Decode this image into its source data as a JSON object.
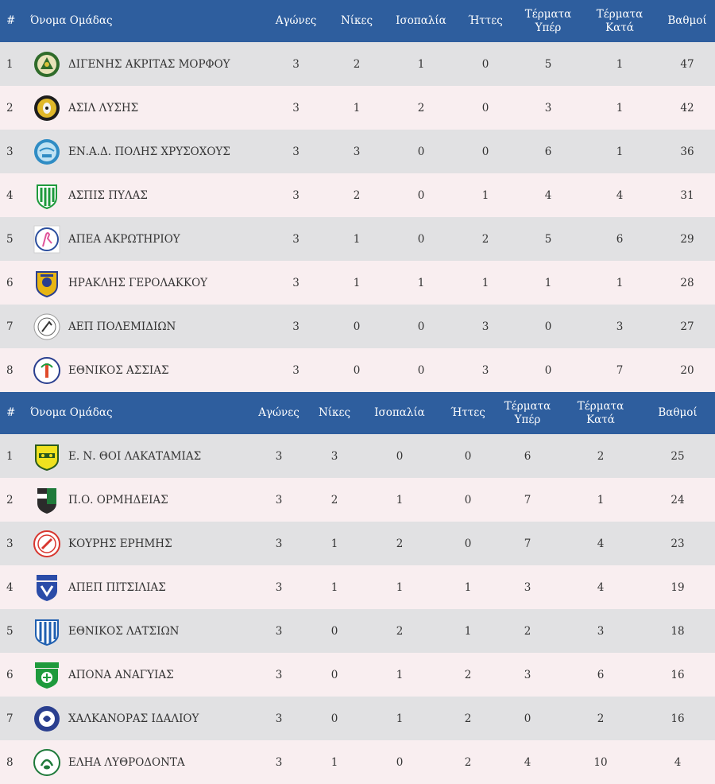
{
  "headers": {
    "pos": "#",
    "team": "Όνομα Ομάδας",
    "played": "Αγώνες",
    "wins": "Νίκες",
    "draws": "Ισοπαλία",
    "losses": "Ήττες",
    "gf_1": "Τέρματα",
    "gf_2": "Υπέρ",
    "ga_1": "Τέρματα",
    "ga_2": "Κατά",
    "points": "Βαθμοί"
  },
  "groups": [
    {
      "rows": [
        {
          "pos": "1",
          "team": "ΔΙΓΕΝΗΣ ΑΚΡΙΤΑΣ ΜΟΡΦΟΥ",
          "played": "3",
          "wins": "2",
          "draws": "1",
          "losses": "0",
          "gf": "5",
          "ga": "1",
          "points": "47",
          "crest": "digenis-akritas-crest-icon"
        },
        {
          "pos": "2",
          "team": "ΑΣΙΛ ΛΥΣΗΣ",
          "played": "3",
          "wins": "1",
          "draws": "2",
          "losses": "0",
          "gf": "3",
          "ga": "1",
          "points": "42",
          "crest": "asil-lysis-crest-icon"
        },
        {
          "pos": "3",
          "team": "ΕΝ.Α.Δ. ΠΟΛΗΣ ΧΡΥΣΟΧΟΥΣ",
          "played": "3",
          "wins": "3",
          "draws": "0",
          "losses": "0",
          "gf": "6",
          "ga": "1",
          "points": "36",
          "crest": "enad-polis-crest-icon"
        },
        {
          "pos": "4",
          "team": "ΑΣΠΙΣ ΠΥΛΑΣ",
          "played": "3",
          "wins": "2",
          "draws": "0",
          "losses": "1",
          "gf": "4",
          "ga": "4",
          "points": "31",
          "crest": "aspis-pylas-crest-icon"
        },
        {
          "pos": "5",
          "team": "ΑΠΕΑ ΑΚΡΩΤΗΡΙΟΥ",
          "played": "3",
          "wins": "1",
          "draws": "0",
          "losses": "2",
          "gf": "5",
          "ga": "6",
          "points": "29",
          "crest": "apea-akrotiriou-crest-icon"
        },
        {
          "pos": "6",
          "team": "ΗΡΑΚΛΗΣ ΓΕΡΟΛΑΚΚΟΥ",
          "played": "3",
          "wins": "1",
          "draws": "1",
          "losses": "1",
          "gf": "1",
          "ga": "1",
          "points": "28",
          "crest": "iraklis-gerolakkou-crest-icon"
        },
        {
          "pos": "7",
          "team": "ΑΕΠ ΠΟΛΕΜΙΔΙΩΝ",
          "played": "3",
          "wins": "0",
          "draws": "0",
          "losses": "3",
          "gf": "0",
          "ga": "3",
          "points": "27",
          "crest": "aep-polemidion-crest-icon"
        },
        {
          "pos": "8",
          "team": "ΕΘΝΙΚΟΣ ΑΣΣΙΑΣ",
          "played": "3",
          "wins": "0",
          "draws": "0",
          "losses": "3",
          "gf": "0",
          "ga": "7",
          "points": "20",
          "crest": "ethnikos-assias-crest-icon"
        }
      ]
    },
    {
      "rows": [
        {
          "pos": "1",
          "team": "Ε. Ν. ΘΟΙ ΛΑΚΑΤΑΜΙΑΣ",
          "played": "3",
          "wins": "3",
          "draws": "0",
          "losses": "0",
          "gf": "6",
          "ga": "2",
          "points": "25",
          "crest": "thoi-lakatamias-crest-icon"
        },
        {
          "pos": "2",
          "team": "Π.Ο. ΟΡΜΗΔΕΙΑΣ",
          "played": "3",
          "wins": "2",
          "draws": "1",
          "losses": "0",
          "gf": "7",
          "ga": "1",
          "points": "24",
          "crest": "po-ormideias-crest-icon"
        },
        {
          "pos": "3",
          "team": "ΚΟΥΡΗΣ ΕΡΗΜΗΣ",
          "played": "3",
          "wins": "1",
          "draws": "2",
          "losses": "0",
          "gf": "7",
          "ga": "4",
          "points": "23",
          "crest": "kouris-erimis-crest-icon"
        },
        {
          "pos": "4",
          "team": "ΑΠΕΠ ΠΙΤΣΙΛΙΑΣ",
          "played": "3",
          "wins": "1",
          "draws": "1",
          "losses": "1",
          "gf": "3",
          "ga": "4",
          "points": "19",
          "crest": "apep-pitsilias-crest-icon"
        },
        {
          "pos": "5",
          "team": "ΕΘΝΙΚΟΣ ΛΑΤΣΙΩΝ",
          "played": "3",
          "wins": "0",
          "draws": "2",
          "losses": "1",
          "gf": "2",
          "ga": "3",
          "points": "18",
          "crest": "ethnikos-latsion-crest-icon"
        },
        {
          "pos": "6",
          "team": "ΑΠΟΝΑ ΑΝΑΓΥΙΑΣ",
          "played": "3",
          "wins": "0",
          "draws": "1",
          "losses": "2",
          "gf": "3",
          "ga": "6",
          "points": "16",
          "crest": "apona-anagyias-crest-icon"
        },
        {
          "pos": "7",
          "team": "ΧΑΛΚΑΝΟΡΑΣ ΙΔΑΛΙΟΥ",
          "played": "3",
          "wins": "0",
          "draws": "1",
          "losses": "2",
          "gf": "0",
          "ga": "2",
          "points": "16",
          "crest": "chalkanoras-idaliou-crest-icon"
        },
        {
          "pos": "8",
          "team": "ΕΛΗΑ ΛΥΘΡΟΔΟΝΤΑ",
          "played": "3",
          "wins": "1",
          "draws": "0",
          "losses": "2",
          "gf": "4",
          "ga": "10",
          "points": "4",
          "crest": "elia-lythrodonta-crest-icon"
        }
      ]
    }
  ]
}
